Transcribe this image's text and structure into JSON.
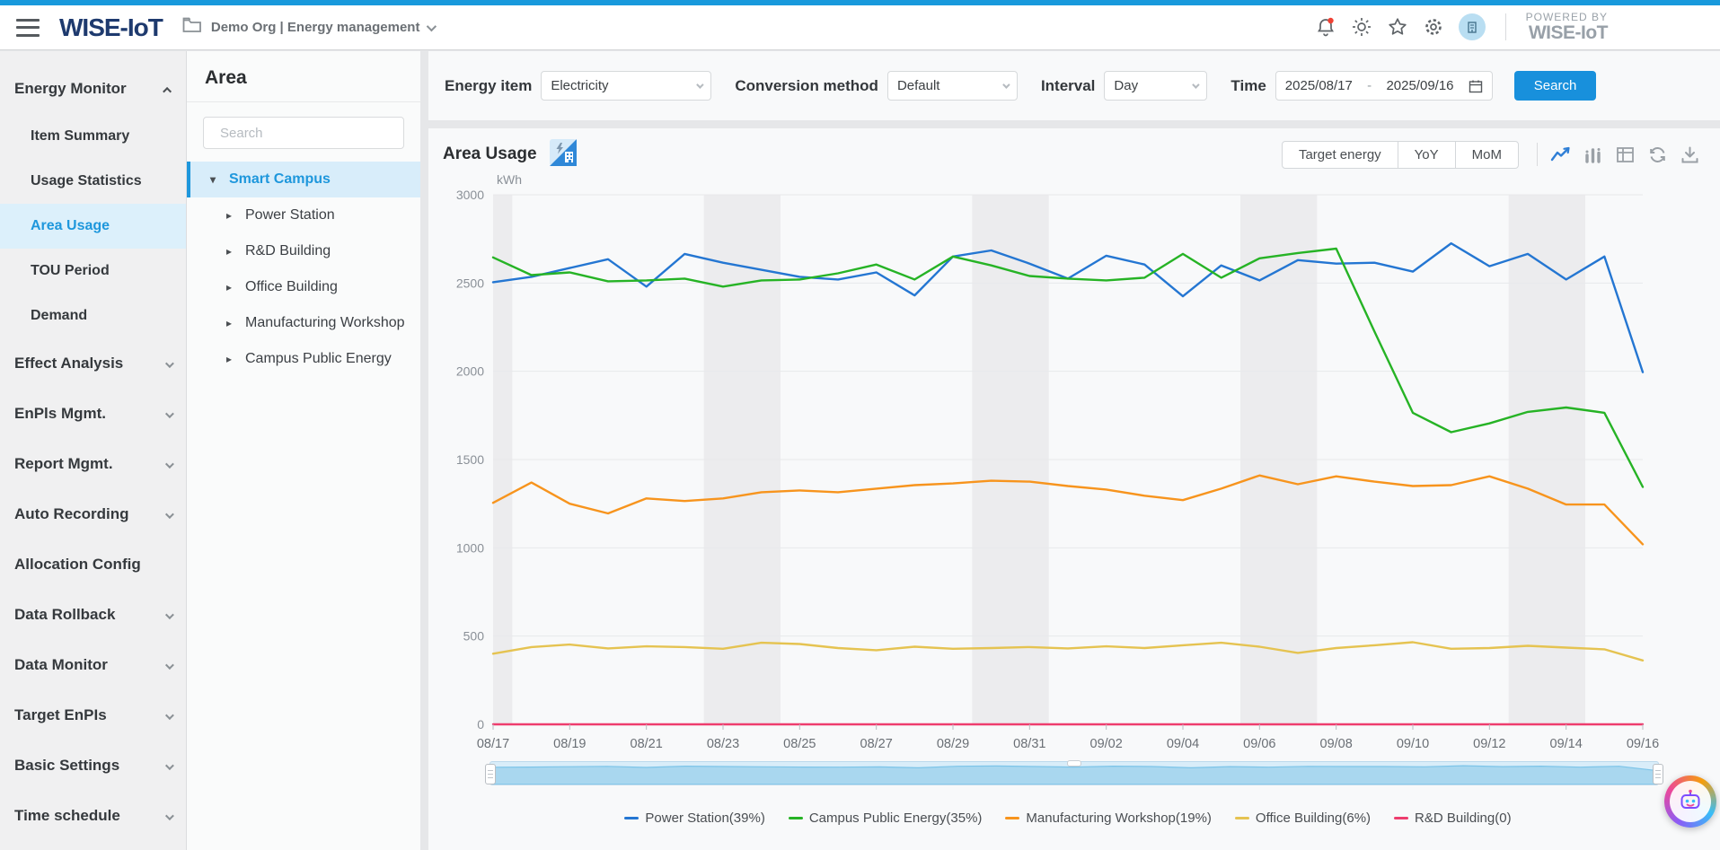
{
  "header": {
    "logo": "WISE-IoT",
    "breadcrumb": "Demo Org | Energy management",
    "powered_by_line1": "POWERED BY",
    "powered_by_line2": "WISE-IoT",
    "icons": [
      "hamburger-icon",
      "folder-icon",
      "bell-icon",
      "brightness-icon",
      "star-icon",
      "gear-icon",
      "avatar"
    ],
    "accent_color": "#1899dc"
  },
  "sidebar": {
    "items": [
      {
        "label": "Energy Monitor",
        "type": "group",
        "expanded": true
      },
      {
        "label": "Item Summary",
        "type": "sub"
      },
      {
        "label": "Usage Statistics",
        "type": "sub"
      },
      {
        "label": "Area Usage",
        "type": "sub",
        "selected": true
      },
      {
        "label": "TOU Period",
        "type": "sub"
      },
      {
        "label": "Demand",
        "type": "sub"
      },
      {
        "label": "Effect Analysis",
        "type": "group"
      },
      {
        "label": "EnPls Mgmt.",
        "type": "group"
      },
      {
        "label": "Report Mgmt.",
        "type": "group"
      },
      {
        "label": "Auto Recording",
        "type": "group"
      },
      {
        "label": "Allocation Config",
        "type": "group",
        "no_chevron": true
      },
      {
        "label": "Data Rollback",
        "type": "group"
      },
      {
        "label": "Data Monitor",
        "type": "group"
      },
      {
        "label": "Target EnPIs",
        "type": "group"
      },
      {
        "label": "Basic Settings",
        "type": "group"
      },
      {
        "label": "Time schedule",
        "type": "group"
      }
    ],
    "selected_item": "Area Usage"
  },
  "area_panel": {
    "title": "Area",
    "search_placeholder": "Search",
    "tree": [
      {
        "label": "Smart Campus",
        "level": 0,
        "selected": true,
        "expanded": true
      },
      {
        "label": "Power Station",
        "level": 1
      },
      {
        "label": "R&D Building",
        "level": 1
      },
      {
        "label": "Office Building",
        "level": 1
      },
      {
        "label": "Manufacturing Workshop",
        "level": 1
      },
      {
        "label": "Campus Public Energy",
        "level": 1
      }
    ]
  },
  "filters": {
    "energy_item_label": "Energy item",
    "energy_item_value": "Electricity",
    "conversion_label": "Conversion method",
    "conversion_value": "Default",
    "interval_label": "Interval",
    "interval_value": "Day",
    "time_label": "Time",
    "time_start": "2025/08/17",
    "time_separator": "-",
    "time_end": "2025/09/16",
    "search_button": "Search"
  },
  "chart_header": {
    "title": "Area Usage",
    "toggle_buttons": [
      "Target energy",
      "YoY",
      "MoM"
    ],
    "tool_icons": [
      "line-chart-icon",
      "bar-chart-icon",
      "table-view-icon",
      "refresh-icon",
      "download-icon"
    ],
    "active_tool": "line-chart-icon"
  },
  "chart_data": {
    "type": "line",
    "title": "Area Usage",
    "y_name": "kWh",
    "ylim": [
      0,
      3000
    ],
    "y_ticks": [
      0,
      500,
      1000,
      1500,
      2000,
      2500,
      3000
    ],
    "grid": true,
    "legend_position": "bottom",
    "x_label_every": 2,
    "x": [
      "08/17",
      "08/18",
      "08/19",
      "08/20",
      "08/21",
      "08/22",
      "08/23",
      "08/24",
      "08/25",
      "08/26",
      "08/27",
      "08/28",
      "08/29",
      "08/30",
      "08/31",
      "09/01",
      "09/02",
      "09/03",
      "09/04",
      "09/05",
      "09/06",
      "09/07",
      "09/08",
      "09/09",
      "09/10",
      "09/11",
      "09/12",
      "09/13",
      "09/14",
      "09/15",
      "09/16"
    ],
    "weekend_band_saturday_indices": [
      6,
      13,
      20,
      27
    ],
    "series": [
      {
        "name": "Power Station(39%)",
        "color": "#2476d2",
        "values": [
          2505,
          2535,
          2585,
          2635,
          2480,
          2665,
          2615,
          2575,
          2535,
          2520,
          2560,
          2430,
          2650,
          2685,
          2610,
          2525,
          2655,
          2605,
          2425,
          2600,
          2515,
          2630,
          2610,
          2615,
          2565,
          2725,
          2595,
          2665,
          2520,
          2650,
          1995
        ]
      },
      {
        "name": "Campus Public Energy(35%)",
        "color": "#26b325",
        "values": [
          2645,
          2545,
          2560,
          2510,
          2515,
          2525,
          2480,
          2515,
          2520,
          2555,
          2605,
          2520,
          2650,
          2600,
          2540,
          2525,
          2515,
          2530,
          2665,
          2530,
          2640,
          2670,
          2695,
          2225,
          1765,
          1655,
          1705,
          1770,
          1795,
          1765,
          1345
        ]
      },
      {
        "name": "Manufacturing Workshop(19%)",
        "color": "#f7941d",
        "values": [
          1255,
          1370,
          1250,
          1195,
          1280,
          1265,
          1280,
          1315,
          1325,
          1315,
          1335,
          1355,
          1365,
          1380,
          1375,
          1350,
          1330,
          1295,
          1270,
          1335,
          1410,
          1360,
          1405,
          1375,
          1350,
          1355,
          1405,
          1335,
          1245,
          1245,
          1020
        ]
      },
      {
        "name": "Office Building(6%)",
        "color": "#e5c351",
        "values": [
          400,
          438,
          452,
          430,
          442,
          438,
          428,
          462,
          455,
          432,
          420,
          440,
          428,
          432,
          438,
          430,
          442,
          432,
          448,
          462,
          440,
          405,
          432,
          448,
          465,
          428,
          432,
          445,
          435,
          425,
          362
        ]
      },
      {
        "name": "R&D Building(0)",
        "color": "#ee3d6e",
        "values": [
          0,
          0,
          0,
          0,
          0,
          0,
          0,
          0,
          0,
          0,
          0,
          0,
          0,
          0,
          0,
          0,
          0,
          0,
          0,
          0,
          0,
          0,
          0,
          0,
          0,
          0,
          0,
          0,
          0,
          0,
          0
        ]
      }
    ]
  }
}
